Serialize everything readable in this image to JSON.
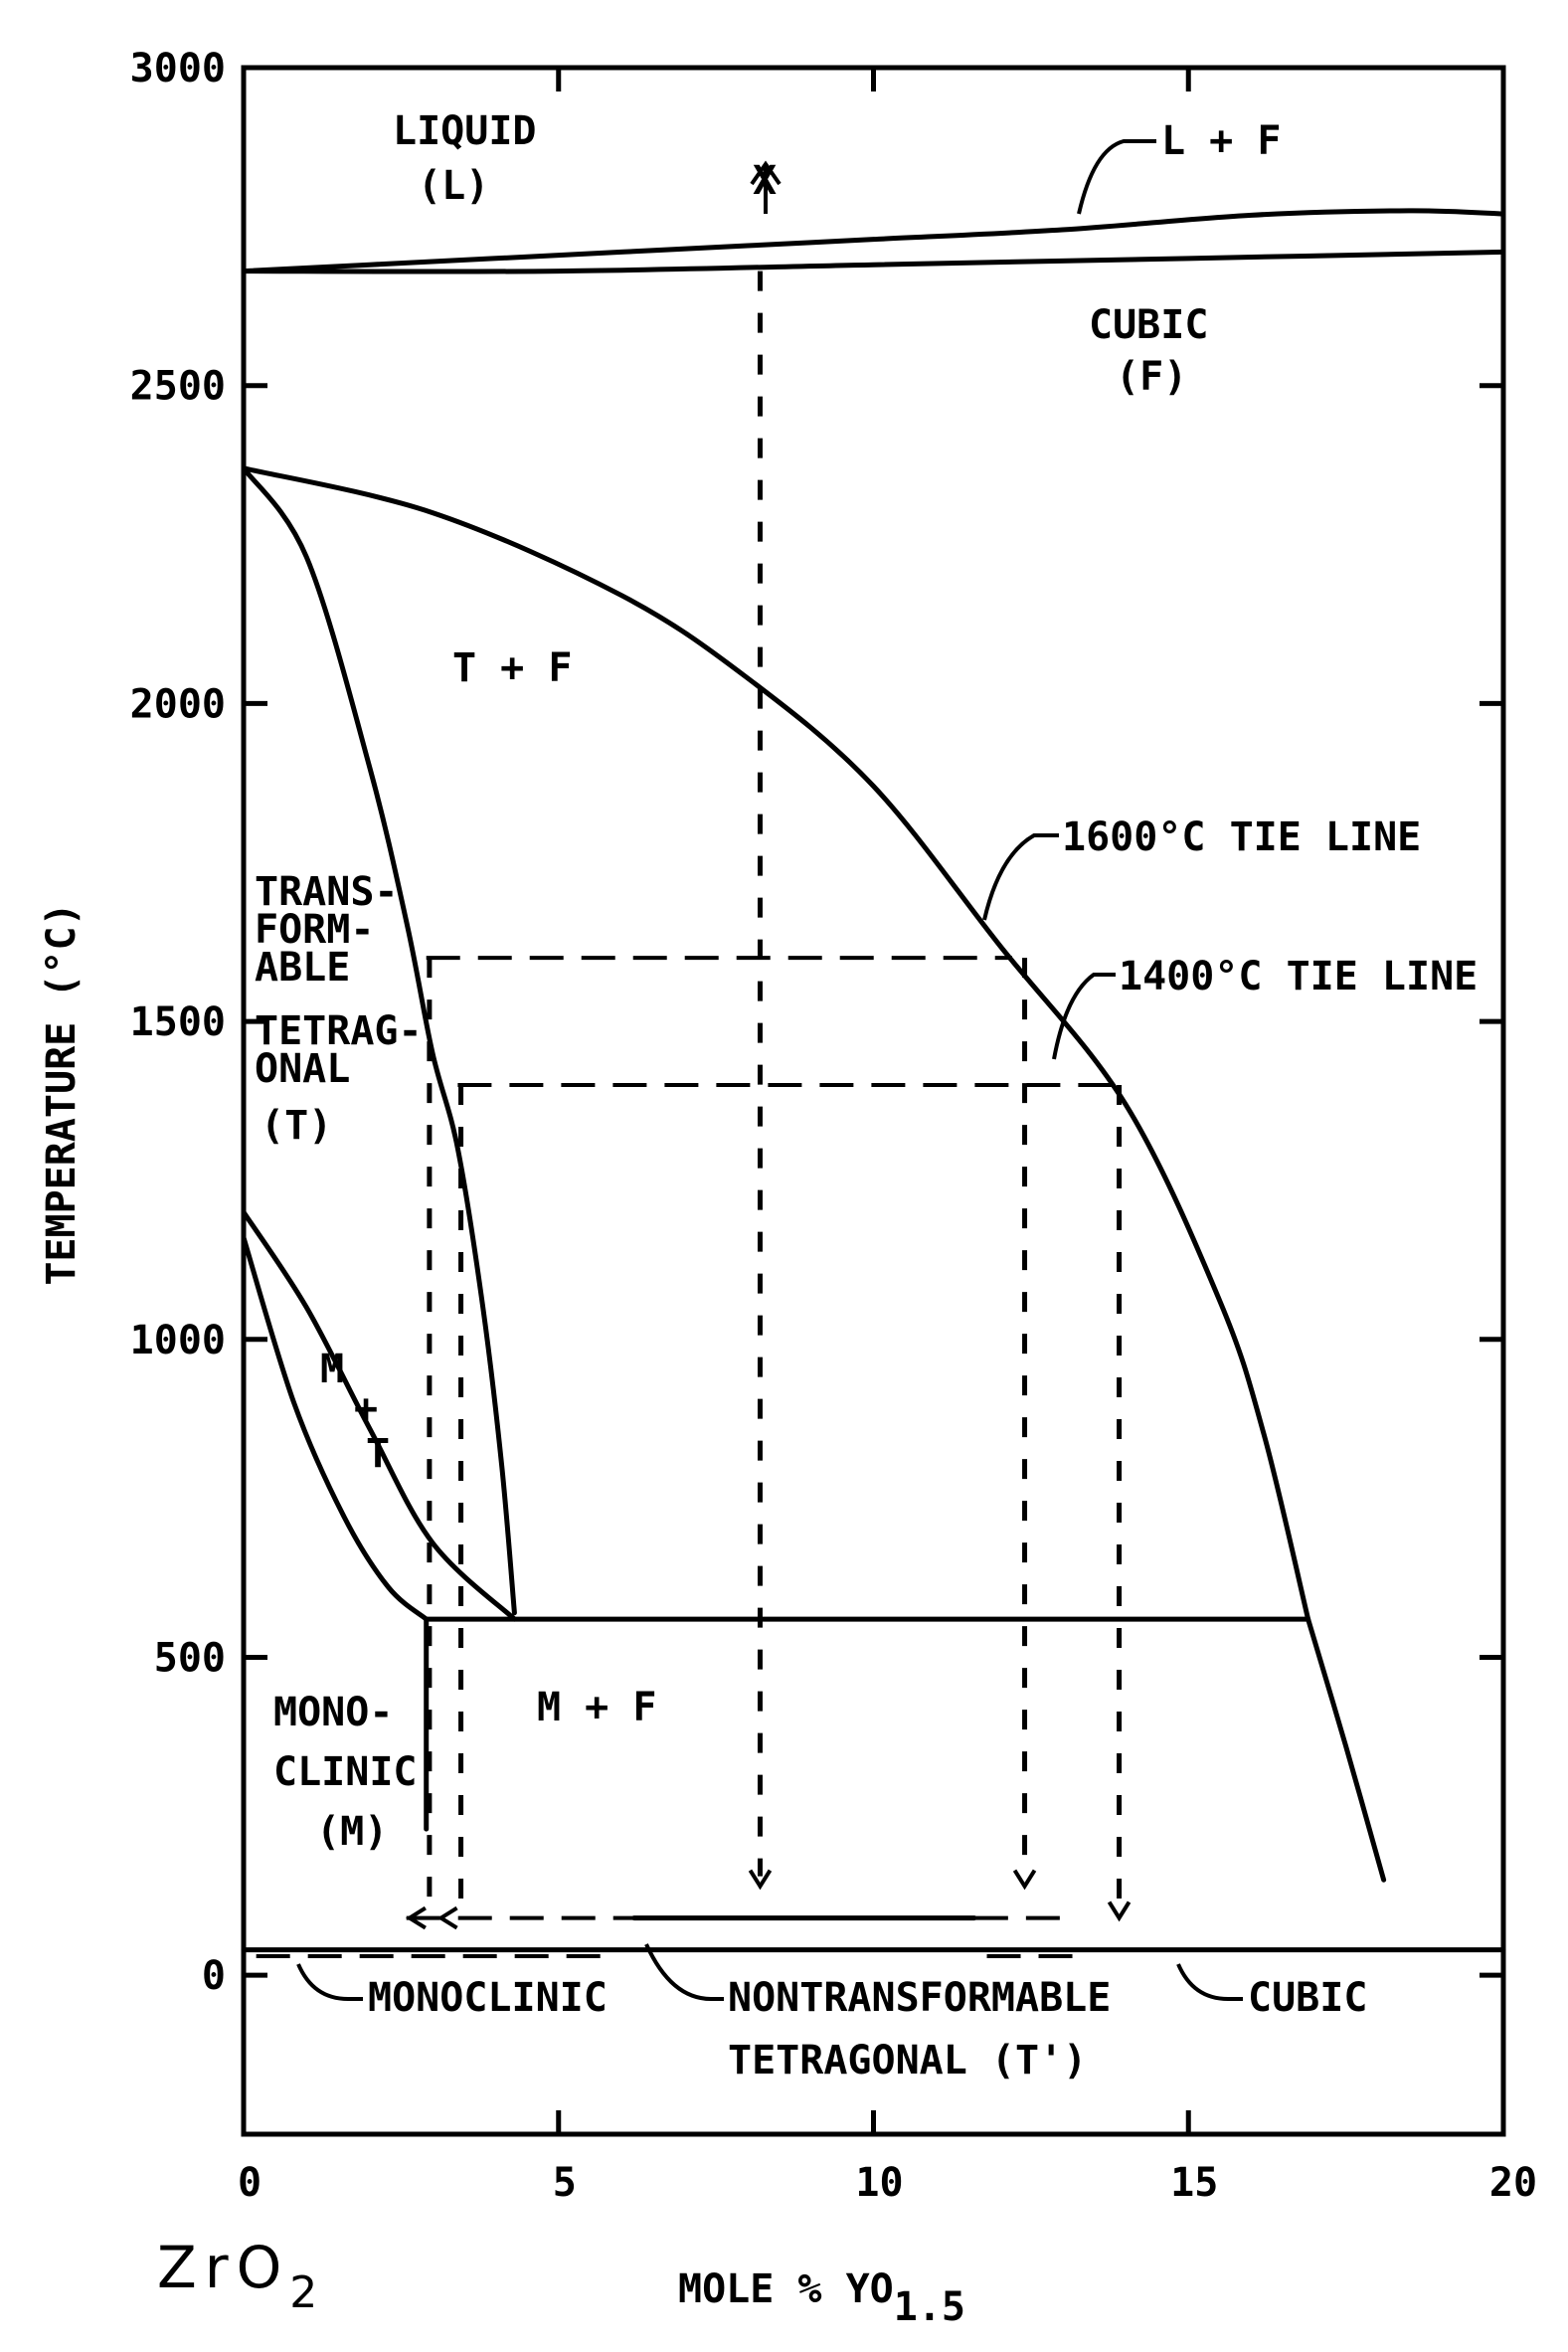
{
  "chart_data": {
    "type": "phase_diagram",
    "x_axis": {
      "label": "MOLE % YO",
      "label_subscript": "1.5",
      "range": [
        0,
        20
      ],
      "ticks": [
        0,
        5,
        10,
        15,
        20
      ],
      "tick_labels": [
        "0",
        "5",
        "10",
        "15",
        "20"
      ]
    },
    "y_axis": {
      "label": "TEMPERATURE (°C)",
      "range": [
        -250,
        3000
      ],
      "ticks": [
        0,
        500,
        1000,
        1500,
        2000,
        2500,
        3000
      ],
      "tick_labels": [
        "0",
        "500",
        "1000",
        "1500",
        "2000",
        "2500",
        "3000"
      ]
    },
    "composition_label": {
      "base": "ZrO",
      "subscript": "2"
    },
    "regions": {
      "liquid": [
        "LIQUID",
        "(L)"
      ],
      "liquid_cubic": "L + F",
      "cubic": [
        "CUBIC",
        "(F)"
      ],
      "tetragonal_cubic": "T + F",
      "transformable_tetragonal": [
        "TRANS-",
        "FORM-",
        "ABLE",
        "TETRAG-",
        "ONAL",
        "(T)"
      ],
      "mono_tetragonal": [
        "M",
        "+",
        "T"
      ],
      "mono_cubic": "M + F",
      "monoclinic": [
        "MONO-",
        "CLINIC",
        "(M)"
      ]
    },
    "annotations": {
      "x_marker": "X",
      "tie_1600": "1600°C TIE LINE",
      "tie_1400": "1400°C TIE LINE",
      "final_monoclinic": "MONOCLINIC",
      "final_nontransformable": [
        "NONTRANSFORMABLE",
        "TETRAGONAL (T')"
      ],
      "final_cubic": "CUBIC"
    },
    "boundaries": [
      {
        "name": "liquidus",
        "points": [
          [
            0,
            2680
          ],
          [
            2,
            2690
          ],
          [
            5,
            2705
          ],
          [
            8,
            2720
          ],
          [
            10,
            2730
          ],
          [
            13,
            2745
          ],
          [
            16,
            2768
          ],
          [
            18.5,
            2775
          ],
          [
            20,
            2770
          ]
        ]
      },
      {
        "name": "solidus",
        "points": [
          [
            0,
            2680
          ],
          [
            5,
            2680
          ],
          [
            10,
            2690
          ],
          [
            15,
            2700
          ],
          [
            20,
            2710
          ]
        ]
      },
      {
        "name": "t_to_tf_boundary",
        "points": [
          [
            0,
            2370
          ],
          [
            1,
            2230
          ],
          [
            2,
            1900
          ],
          [
            2.6,
            1650
          ],
          [
            3,
            1450
          ],
          [
            3.4,
            1300
          ],
          [
            3.8,
            1050
          ],
          [
            4.1,
            800
          ],
          [
            4.3,
            570
          ]
        ]
      },
      {
        "name": "tf_to_f_boundary",
        "points": [
          [
            0,
            2370
          ],
          [
            3,
            2300
          ],
          [
            6,
            2170
          ],
          [
            8,
            2040
          ],
          [
            10,
            1870
          ],
          [
            12,
            1620
          ],
          [
            14,
            1370
          ],
          [
            15.5,
            1060
          ],
          [
            16.2,
            850
          ],
          [
            16.9,
            560
          ]
        ]
      },
      {
        "name": "cubic_solvus_low",
        "points": [
          [
            16.9,
            560
          ],
          [
            17.5,
            360
          ],
          [
            18.1,
            150
          ]
        ]
      },
      {
        "name": "eutectoid",
        "points": [
          [
            2.9,
            560
          ],
          [
            4.3,
            560
          ],
          [
            10,
            560
          ],
          [
            16.9,
            560
          ]
        ]
      },
      {
        "name": "mt_upper",
        "points": [
          [
            0,
            1200
          ],
          [
            1,
            1050
          ],
          [
            2,
            860
          ],
          [
            3,
            680
          ],
          [
            4.3,
            560
          ]
        ]
      },
      {
        "name": "mt_lower",
        "points": [
          [
            0,
            1160
          ],
          [
            0.8,
            900
          ],
          [
            1.6,
            720
          ],
          [
            2.3,
            610
          ],
          [
            2.9,
            560
          ]
        ]
      },
      {
        "name": "m_boundary_vertical",
        "points": [
          [
            2.9,
            560
          ],
          [
            2.9,
            230
          ]
        ]
      },
      {
        "name": "bottom_line",
        "points": [
          [
            0,
            40
          ],
          [
            20,
            40
          ]
        ]
      }
    ],
    "tie_lines": [
      {
        "temperature": 1600,
        "from": 2.9,
        "to": 12.2
      },
      {
        "temperature": 1400,
        "from": 3.4,
        "to": 13.8
      }
    ],
    "cooling_paths": [
      {
        "x": 2.95,
        "from": 1600,
        "to": 90,
        "arrow": "left"
      },
      {
        "x": 3.45,
        "from": 1400,
        "to": 90,
        "arrow": "left"
      },
      {
        "x": 8.2,
        "from": 2680,
        "to": 140,
        "arrow": "down"
      },
      {
        "x": 12.4,
        "from": 1600,
        "to": 140,
        "arrow": "down"
      },
      {
        "x": 13.9,
        "from": 1400,
        "to": 90,
        "arrow": "down"
      }
    ],
    "final_phase_line": {
      "temperature": 90,
      "from": 2.9,
      "to": 12.6
    }
  }
}
